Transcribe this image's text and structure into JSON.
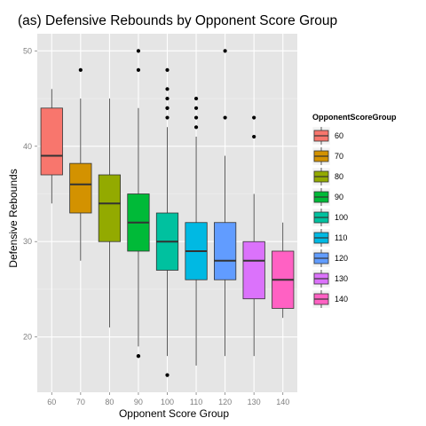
{
  "chart_data": {
    "type": "box",
    "title": "(as) Defensive Rebounds by Opponent Score Group",
    "xlabel": "Opponent Score Group",
    "ylabel": "Defensive Rebounds",
    "categories": [
      "60",
      "70",
      "80",
      "90",
      "100",
      "110",
      "120",
      "130",
      "140"
    ],
    "yticks": [
      20,
      30,
      40,
      50
    ],
    "ylim": [
      14.2,
      51.8
    ],
    "grid": true,
    "legend": {
      "title": "OpponentScoreGroup",
      "placement": "right",
      "entries": [
        "60",
        "70",
        "80",
        "90",
        "100",
        "110",
        "120",
        "130",
        "140"
      ]
    },
    "colors": [
      "#F8766D",
      "#D39200",
      "#93AA00",
      "#00BA38",
      "#00C19F",
      "#00B9E3",
      "#619CFF",
      "#DB72FB",
      "#FF61C3"
    ],
    "boxes": [
      {
        "group": "60",
        "whisker_low": 34,
        "q1": 37,
        "median": 39,
        "q3": 44,
        "whisker_high": 46,
        "outliers": []
      },
      {
        "group": "70",
        "whisker_low": 28,
        "q1": 33,
        "median": 36,
        "q3": 38.2,
        "whisker_high": 45,
        "outliers": [
          48
        ]
      },
      {
        "group": "80",
        "whisker_low": 21,
        "q1": 30,
        "median": 34,
        "q3": 37,
        "whisker_high": 45,
        "outliers": []
      },
      {
        "group": "90",
        "whisker_low": 19,
        "q1": 29,
        "median": 32,
        "q3": 35,
        "whisker_high": 44,
        "outliers": [
          50,
          48,
          18,
          18
        ]
      },
      {
        "group": "100",
        "whisker_low": 18,
        "q1": 27,
        "median": 30,
        "q3": 33,
        "whisker_high": 42,
        "outliers": [
          48,
          46,
          45,
          44,
          44,
          43,
          16
        ]
      },
      {
        "group": "110",
        "whisker_low": 17,
        "q1": 26,
        "median": 29,
        "q3": 32,
        "whisker_high": 41,
        "outliers": [
          45,
          44,
          43,
          42
        ]
      },
      {
        "group": "120",
        "whisker_low": 18,
        "q1": 26,
        "median": 28,
        "q3": 32,
        "whisker_high": 39,
        "outliers": [
          50,
          43
        ]
      },
      {
        "group": "130",
        "whisker_low": 18,
        "q1": 24,
        "median": 28,
        "q3": 30,
        "whisker_high": 35,
        "outliers": [
          43,
          41
        ]
      },
      {
        "group": "140",
        "whisker_low": 22,
        "q1": 23,
        "median": 26,
        "q3": 29,
        "whisker_high": 32,
        "outliers": []
      }
    ]
  }
}
